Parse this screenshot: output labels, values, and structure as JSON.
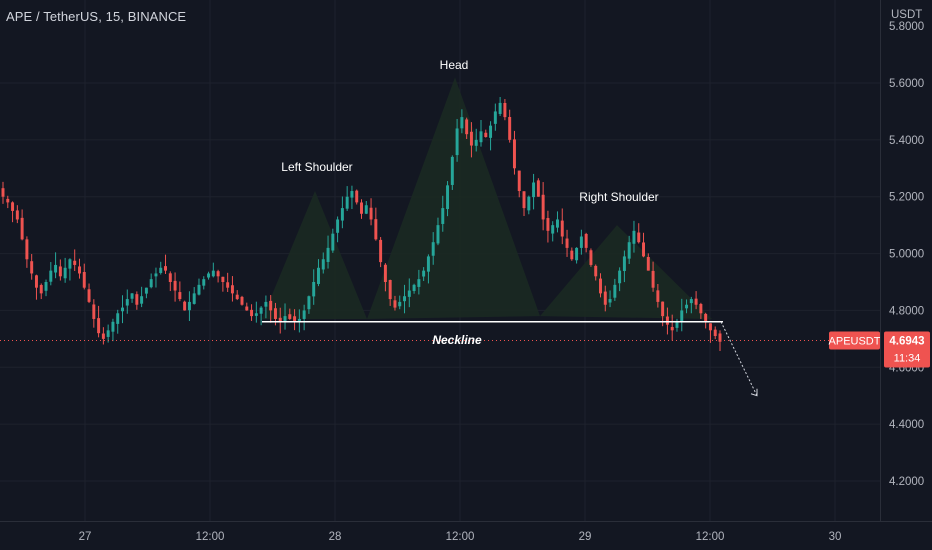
{
  "header": {
    "title": "APE / TetherUS, 15, BINANCE"
  },
  "price_axis": {
    "unit": "USDT"
  },
  "colors": {
    "background": "#131722",
    "up": "#26a69a",
    "down": "#ef5350",
    "grid": "#1e222d",
    "text": "#b2b5be",
    "pattern_fill": "#1b2a22",
    "neckline": "#ffffff",
    "price_line": "#ef5350"
  },
  "chart_data": {
    "type": "candlestick",
    "symbol": "APEUSDT",
    "y_ticks": [
      "5.6000",
      "5.4000",
      "5.2000",
      "5.0000",
      "4.8000",
      "4.6000",
      "4.4000",
      "4.2000"
    ],
    "y_tick_values": [
      5.6,
      5.4,
      5.2,
      5.0,
      4.8,
      4.6,
      4.4,
      4.2
    ],
    "top_partial_tick": "5.8000",
    "x_ticks": [
      "27",
      "12:00",
      "28",
      "12:00",
      "29",
      "12:00",
      "30"
    ],
    "last_price": "4.6943",
    "countdown": "11:34",
    "annotations": {
      "left_shoulder": "Left Shoulder",
      "head": "Head",
      "right_shoulder": "Right Shoulder",
      "neckline": "Neckline"
    },
    "neckline_price": 4.76,
    "pattern_vertices": [
      [
        0.0,
        4.77
      ],
      [
        1.0,
        5.22
      ],
      [
        2.0,
        4.77
      ],
      [
        3.5,
        5.62
      ],
      [
        5.0,
        4.78
      ],
      [
        6.0,
        5.1
      ],
      [
        7.0,
        4.77
      ]
    ],
    "series_close": [
      5.2,
      5.18,
      5.15,
      5.12,
      5.05,
      4.98,
      4.93,
      4.88,
      4.86,
      4.9,
      4.94,
      4.96,
      4.92,
      4.95,
      4.98,
      4.96,
      4.93,
      4.88,
      4.83,
      4.77,
      4.72,
      4.7,
      4.73,
      4.76,
      4.79,
      4.81,
      4.84,
      4.86,
      4.82,
      4.85,
      4.88,
      4.91,
      4.93,
      4.95,
      4.94,
      4.9,
      4.87,
      4.84,
      4.8,
      4.83,
      4.86,
      4.89,
      4.91,
      4.93,
      4.94,
      4.92,
      4.9,
      4.88,
      4.86,
      4.84,
      4.82,
      4.8,
      4.78,
      4.79,
      4.81,
      4.83,
      4.8,
      4.77,
      4.76,
      4.78,
      4.77,
      4.76,
      4.77,
      4.8,
      4.85,
      4.9,
      4.95,
      4.98,
      5.02,
      5.07,
      5.12,
      5.16,
      5.2,
      5.22,
      5.18,
      5.14,
      5.17,
      5.12,
      5.05,
      4.97,
      4.9,
      4.84,
      4.81,
      4.83,
      4.85,
      4.87,
      4.89,
      4.91,
      4.94,
      4.99,
      5.04,
      5.1,
      5.16,
      5.24,
      5.34,
      5.44,
      5.48,
      5.42,
      5.38,
      5.4,
      5.43,
      5.41,
      5.45,
      5.5,
      5.53,
      5.48,
      5.4,
      5.3,
      5.22,
      5.16,
      5.2,
      5.25,
      5.2,
      5.12,
      5.08,
      5.1,
      5.12,
      5.06,
      5.02,
      4.98,
      5.02,
      5.06,
      5.02,
      4.96,
      4.92,
      4.86,
      4.82,
      4.84,
      4.89,
      4.94,
      4.99,
      5.04,
      5.08,
      5.04,
      4.99,
      4.94,
      4.88,
      4.83,
      4.78,
      4.75,
      4.73,
      4.76,
      4.8,
      4.82,
      4.84,
      4.82,
      4.79,
      4.76,
      4.73,
      4.71,
      4.69
    ]
  }
}
